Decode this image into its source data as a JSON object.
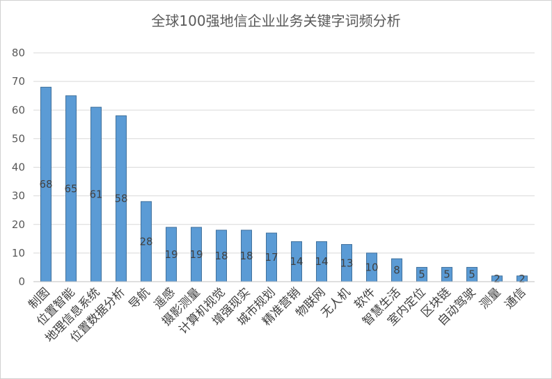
{
  "chart_data": {
    "type": "bar",
    "title": "全球100强地信企业业务关键字词频分析",
    "xlabel": "",
    "ylabel": "",
    "ylim": [
      0,
      80
    ],
    "yticks": [
      0,
      10,
      20,
      30,
      40,
      50,
      60,
      70,
      80
    ],
    "grid": true,
    "legend": "none",
    "colors": {
      "bar": "#5b9bd5",
      "bar_edge": "#41719c",
      "grid": "#d9d9d9",
      "text": "#595959"
    },
    "categories": [
      "制图",
      "位置智能",
      "地理信息系统",
      "位置数据分析",
      "导航",
      "遥感",
      "摄影测量",
      "计算机视觉",
      "增强现实",
      "城市规划",
      "精准营销",
      "物联网",
      "无人机",
      "软件",
      "智慧生活",
      "室内定位",
      "区块链",
      "自动驾驶",
      "测量",
      "通信"
    ],
    "values": [
      68,
      65,
      61,
      58,
      28,
      19,
      19,
      18,
      18,
      17,
      14,
      14,
      13,
      10,
      8,
      5,
      5,
      5,
      2,
      2
    ]
  }
}
